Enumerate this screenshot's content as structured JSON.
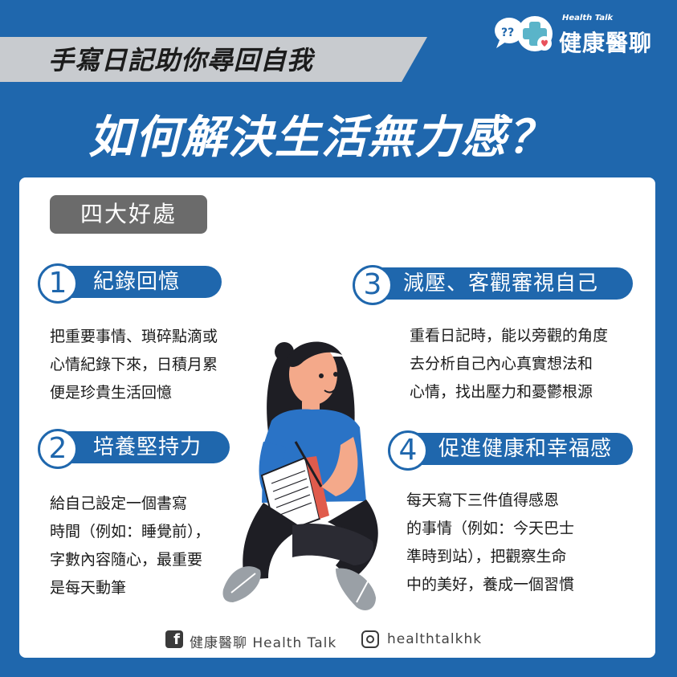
{
  "brand": {
    "en": "Health Talk",
    "zh": "健康醫聊"
  },
  "subtitle": "手寫日記助你尋回自我",
  "title": "如何解決生活無力感？",
  "tag": "四大好處",
  "benefits": [
    {
      "num": "1",
      "title": "紀錄回憶",
      "lines": [
        "把重要事情、瑣碎點滴或",
        "心情紀錄下來，日積月累",
        "便是珍貴生活回憶"
      ]
    },
    {
      "num": "2",
      "title": "培養堅持力",
      "lines": [
        "給自己設定一個書寫",
        "時間（例如：睡覺前），",
        "字數內容隨心，最重要",
        "是每天動筆"
      ]
    },
    {
      "num": "3",
      "title": "減壓、客觀審視自己",
      "lines": [
        "重看日記時，能以旁觀的角度",
        "去分析自己內心真實想法和",
        "心情，找出壓力和憂鬱根源"
      ]
    },
    {
      "num": "4",
      "title": "促進健康和幸福感",
      "lines": [
        "每天寫下三件值得感恩",
        "的事情（例如：今天巴士",
        "準時到站），把觀察生命",
        "中的美好，養成一個習慣"
      ]
    }
  ],
  "footer": {
    "facebook": "健康醫聊 Health Talk",
    "instagram": "healthtalkhk"
  },
  "colors": {
    "background": "#1f67ad",
    "card": "#ffffff",
    "accent": "#1f67ad",
    "tag": "#6b6b6b",
    "banner": "#c8cbcf"
  }
}
